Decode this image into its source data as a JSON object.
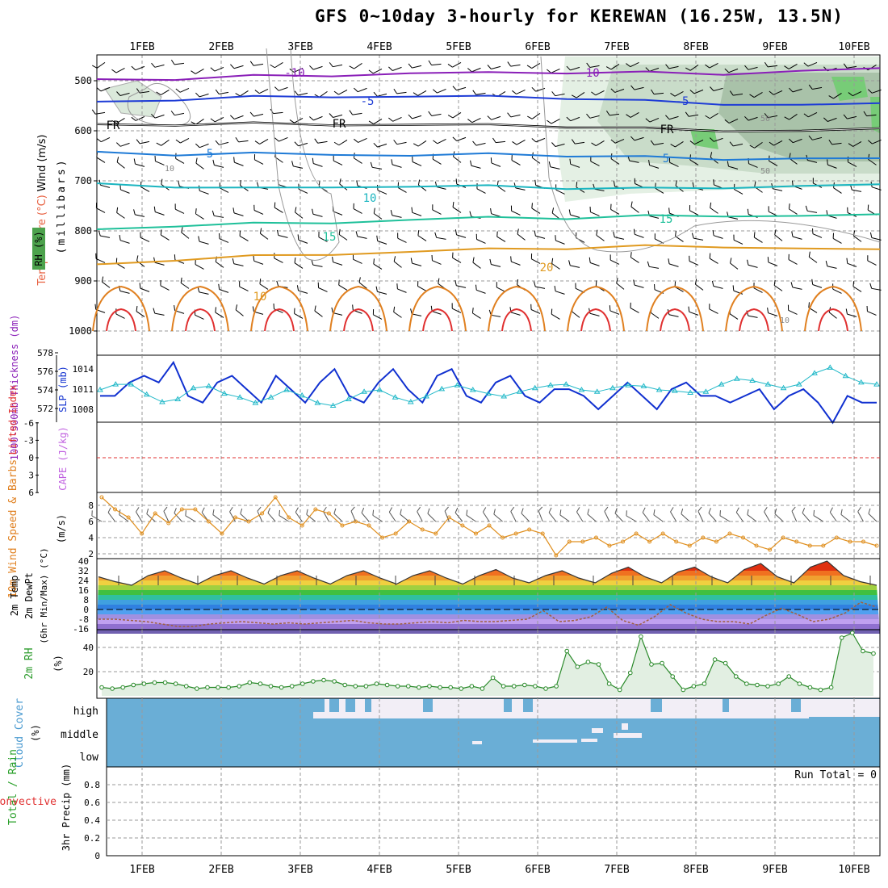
{
  "title": "GFS 0~10day 3-hourly for KEREWAN (16.25W, 13.5N)",
  "date_labels": [
    "1FEB",
    "2FEB",
    "3FEB",
    "4FEB",
    "5FEB",
    "6FEB",
    "7FEB",
    "8FEB",
    "9FEB",
    "10FEB"
  ],
  "chart_data": [
    {
      "type": "contour",
      "panel": "upper-air",
      "ylabel": [
        "RH (%)",
        "Temperature (°C)",
        "Wind (m/s)",
        "(millibars)"
      ],
      "yticks": [
        "500",
        "600",
        "700",
        "800",
        "900",
        "1000"
      ],
      "ylim": [
        1000,
        450
      ],
      "contour_labels": [
        "-10",
        "-10",
        "-5",
        "-5",
        "FR",
        "FR",
        "FR",
        "5",
        "5",
        "10",
        "15",
        "15",
        "20",
        "10",
        "50",
        "50",
        "10",
        "10"
      ],
      "isotherm_series": [
        {
          "name": "-10",
          "levels": [
            500,
            497,
            490,
            488,
            485,
            486,
            484,
            483,
            485,
            480,
            478
          ]
        },
        {
          "name": "-5",
          "levels": [
            545,
            538,
            532,
            530,
            532,
            533,
            535,
            540,
            545,
            548,
            548
          ]
        },
        {
          "name": "FR",
          "levels": [
            590,
            588,
            585,
            586,
            588,
            590,
            592,
            595,
            598,
            600,
            598
          ]
        },
        {
          "name": "5",
          "levels": [
            645,
            648,
            645,
            645,
            650,
            648,
            650,
            652,
            655,
            655,
            658
          ]
        },
        {
          "name": "10",
          "levels": [
            708,
            712,
            715,
            710,
            712,
            712,
            715,
            715,
            712,
            710,
            710
          ]
        },
        {
          "name": "15",
          "levels": [
            800,
            790,
            785,
            782,
            778,
            775,
            775,
            770,
            768,
            770,
            770
          ]
        },
        {
          "name": "20",
          "levels": [
            870,
            858,
            850,
            845,
            842,
            838,
            835,
            830,
            830,
            835,
            840
          ]
        }
      ]
    },
    {
      "type": "line",
      "panel": "thickness-slp",
      "ylabel_left": "1000-500mb Thickness (dm)",
      "ylabel_right": "SLP (mb)",
      "yticks_left": [
        "572",
        "574",
        "576",
        "578"
      ],
      "yticks_right": [
        "1008",
        "1011",
        "1014"
      ],
      "series": [
        {
          "name": "SLP (mb)",
          "values": [
            1010,
            1010,
            1012,
            1013,
            1012,
            1015,
            1010,
            1009,
            1012,
            1013,
            1011,
            1009,
            1013,
            1011,
            1009,
            1012,
            1014,
            1010,
            1009,
            1012,
            1014,
            1011,
            1009,
            1013,
            1014,
            1010,
            1009,
            1012,
            1013,
            1010,
            1009,
            1011,
            1011,
            1010,
            1008,
            1010,
            1012,
            1010,
            1008,
            1011,
            1012,
            1010,
            1010,
            1009,
            1010,
            1011,
            1008,
            1010,
            1011,
            1009,
            1006,
            1010,
            1009,
            1009
          ]
        },
        {
          "name": "1000-500mb Thickness (dm)",
          "values": [
            574.0,
            574.6,
            574.6,
            573.5,
            572.7,
            573.0,
            574.2,
            574.4,
            573.6,
            573.2,
            572.6,
            573.2,
            574.0,
            573.4,
            572.6,
            572.3,
            573.0,
            573.8,
            574.0,
            573.2,
            572.7,
            573.3,
            574.1,
            574.5,
            574.0,
            573.6,
            573.3,
            573.8,
            574.2,
            574.5,
            574.6,
            574.0,
            573.8,
            574.2,
            574.5,
            574.4,
            574.0,
            573.9,
            573.7,
            573.8,
            574.6,
            575.2,
            575.0,
            574.6,
            574.2,
            574.6,
            575.8,
            576.4,
            575.5,
            574.8,
            574.6
          ]
        }
      ]
    },
    {
      "type": "line",
      "panel": "cape-li",
      "ylabel": [
        "Lifted Index",
        "CAPE (J/kg)"
      ],
      "yticks": [
        "6",
        "3",
        "0",
        "-3",
        "-6"
      ],
      "series": [
        {
          "name": "Lifted Index",
          "values": []
        }
      ]
    },
    {
      "type": "line",
      "panel": "10m-wind",
      "ylabel": [
        "10m Wind Speed & Barbs",
        "(m/s)"
      ],
      "yticks": [
        "2",
        "4",
        "6",
        "8"
      ],
      "ylim": [
        1.5,
        9.5
      ],
      "series": [
        {
          "name": "10m Wind Speed",
          "values": [
            9.0,
            7.5,
            6.5,
            4.5,
            7.0,
            5.8,
            7.5,
            7.5,
            6.0,
            4.5,
            6.5,
            6.0,
            7.0,
            9.0,
            6.5,
            5.5,
            7.5,
            7.0,
            5.5,
            6.0,
            5.5,
            4.0,
            4.5,
            6.0,
            5.0,
            4.5,
            6.5,
            5.5,
            4.5,
            5.5,
            4.0,
            4.5,
            5.0,
            4.5,
            1.8,
            3.5,
            3.5,
            4.0,
            3.0,
            3.5,
            4.5,
            3.5,
            4.5,
            3.5,
            3.0,
            4.0,
            3.5,
            4.5,
            4.0,
            3.0,
            2.5,
            4.0,
            3.5,
            3.0,
            3.0,
            4.0,
            3.5,
            3.5,
            3.0
          ]
        }
      ]
    },
    {
      "type": "line",
      "panel": "2m-temp",
      "ylabel": [
        "2m Temp",
        "2m DewPt",
        "(6hr Min/Max) (°C)"
      ],
      "yticks": [
        "40",
        "32",
        "24",
        "16",
        "8",
        "0",
        "-8",
        "-16"
      ],
      "series": [
        {
          "name": "2m Temp",
          "values": [
            27,
            23,
            20,
            28,
            32,
            26,
            21,
            28,
            32,
            26,
            21,
            28,
            32,
            26,
            21,
            28,
            32,
            26,
            21,
            28,
            32,
            26,
            21,
            28,
            33,
            26,
            22,
            28,
            32,
            26,
            22,
            30,
            35,
            27,
            22,
            31,
            35,
            27,
            22,
            33,
            38,
            27,
            22,
            35,
            40,
            28,
            23,
            20
          ]
        },
        {
          "name": "2m DewPt",
          "values": [
            -8,
            -8,
            -9,
            -10,
            -12,
            -14,
            -14,
            -12,
            -11,
            -10,
            -11,
            -12,
            -11,
            -12,
            -11,
            -10,
            -9,
            -11,
            -12,
            -12,
            -11,
            -10,
            -11,
            -9,
            -10,
            -10,
            -9,
            -8,
            -1,
            -10,
            -9,
            -6,
            2,
            -9,
            -13,
            -6,
            4,
            -3,
            -8,
            -10,
            -10,
            -12,
            -5,
            1,
            -4,
            -10,
            -8,
            -3,
            6,
            2
          ]
        }
      ]
    },
    {
      "type": "area",
      "panel": "2m-rh",
      "ylabel": [
        "2m RH",
        "(%)"
      ],
      "yticks": [
        "20",
        "40"
      ],
      "ylim": [
        0,
        55
      ],
      "series": [
        {
          "name": "2m RH",
          "values": [
            7,
            6,
            7,
            9,
            10,
            11,
            11,
            10,
            8,
            6,
            7,
            7,
            7,
            8,
            11,
            10,
            8,
            7,
            8,
            10,
            12,
            13,
            12,
            9,
            8,
            8,
            10,
            9,
            8,
            8,
            7,
            8,
            7,
            7,
            6,
            8,
            6,
            15,
            8,
            8,
            9,
            8,
            6,
            8,
            37,
            24,
            28,
            26,
            10,
            5,
            19,
            49,
            26,
            27,
            16,
            5,
            8,
            10,
            30,
            27,
            16,
            10,
            9,
            8,
            10,
            16,
            10,
            7,
            5,
            7,
            48,
            52,
            37,
            35
          ]
        }
      ]
    },
    {
      "type": "bar",
      "panel": "cloud-cover",
      "ylabel": [
        "Cloud Cover",
        "(%)"
      ],
      "yticks": [
        "high",
        "middle",
        "low"
      ]
    },
    {
      "type": "bar",
      "panel": "precip",
      "ylabel": [
        "Total / Rain",
        "Convective",
        "3hr Precip (mm)"
      ],
      "yticks": [
        "0",
        "0.2",
        "0.4",
        "0.6",
        "0.8"
      ],
      "ylim": [
        0,
        1.0
      ],
      "annotation": "Run Total = 0",
      "series": [
        {
          "name": "3hr Precip",
          "values": []
        }
      ]
    }
  ]
}
